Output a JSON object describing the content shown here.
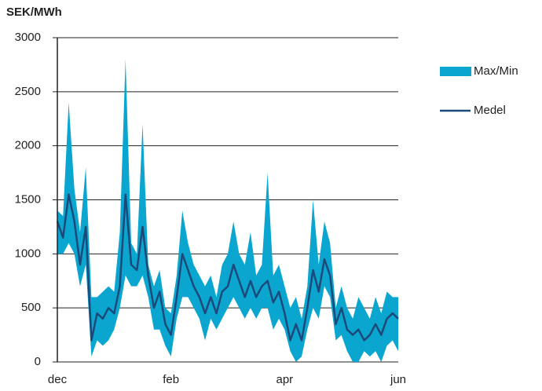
{
  "chart_data": {
    "type": "band-line",
    "title": "SEK/MWh",
    "categories": [
      "dec",
      null,
      null,
      null,
      null,
      null,
      null,
      null,
      null,
      null,
      null,
      null,
      null,
      null,
      null,
      null,
      null,
      null,
      null,
      null,
      "feb",
      null,
      null,
      null,
      null,
      null,
      null,
      null,
      null,
      null,
      null,
      null,
      null,
      null,
      null,
      null,
      null,
      null,
      null,
      null,
      "apr",
      null,
      null,
      null,
      null,
      null,
      null,
      null,
      null,
      null,
      null,
      null,
      null,
      null,
      null,
      null,
      null,
      null,
      null,
      null,
      "jun"
    ],
    "ylim": [
      0,
      3000
    ],
    "yticks": [
      0,
      500,
      1000,
      1500,
      2000,
      2500,
      3000
    ],
    "grid": true,
    "series": [
      {
        "name": "Max/Min",
        "color": "#0aa6cf",
        "max": [
          1400,
          1350,
          2400,
          1600,
          1200,
          1800,
          600,
          600,
          650,
          700,
          650,
          1200,
          2800,
          1100,
          1000,
          2200,
          900,
          700,
          850,
          500,
          450,
          800,
          1400,
          1100,
          900,
          800,
          700,
          800,
          600,
          900,
          1000,
          1300,
          1000,
          900,
          1200,
          800,
          900,
          1750,
          800,
          900,
          700,
          500,
          600,
          400,
          700,
          1500,
          900,
          1300,
          1100,
          500,
          700,
          500,
          400,
          600,
          500,
          400,
          600,
          450,
          650,
          600,
          600
        ],
        "min": [
          1000,
          1000,
          1100,
          1000,
          700,
          900,
          50,
          200,
          150,
          200,
          300,
          500,
          800,
          700,
          700,
          800,
          600,
          300,
          300,
          150,
          50,
          400,
          600,
          600,
          500,
          400,
          200,
          400,
          300,
          400,
          500,
          600,
          500,
          400,
          500,
          400,
          500,
          500,
          300,
          400,
          300,
          100,
          0,
          50,
          300,
          500,
          400,
          700,
          600,
          200,
          250,
          100,
          0,
          0,
          100,
          50,
          100,
          0,
          150,
          200,
          100
        ]
      },
      {
        "name": "Medel",
        "color": "#1b4a7a",
        "values": [
          1300,
          1150,
          1550,
          1300,
          900,
          1250,
          200,
          450,
          400,
          500,
          450,
          700,
          1550,
          900,
          850,
          1250,
          800,
          500,
          650,
          350,
          250,
          600,
          1000,
          850,
          700,
          600,
          450,
          600,
          450,
          650,
          700,
          900,
          750,
          600,
          750,
          600,
          700,
          750,
          550,
          650,
          450,
          200,
          350,
          200,
          500,
          850,
          650,
          950,
          800,
          350,
          500,
          300,
          250,
          300,
          200,
          250,
          350,
          250,
          400,
          450,
          400
        ]
      }
    ]
  }
}
